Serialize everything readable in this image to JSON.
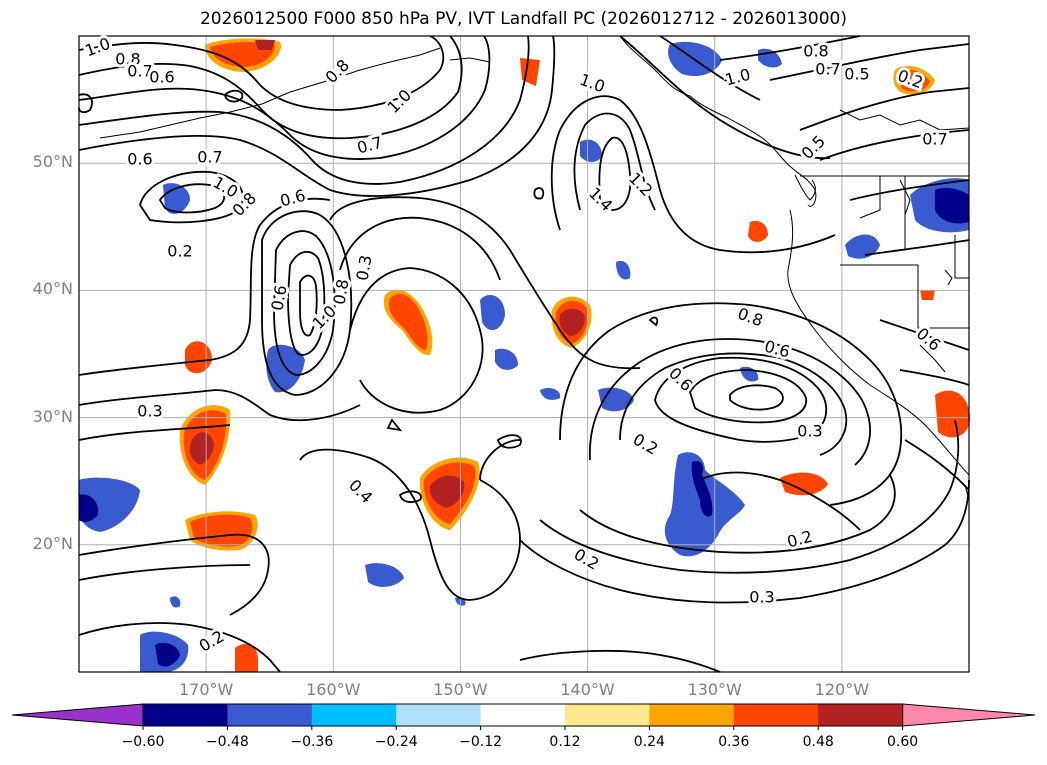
{
  "title": "2026012500 F000 850 hPa PV, IVT Landfall PC (2026012712 - 2026013000)",
  "map": {
    "lon_range": [
      -180,
      -110
    ],
    "lat_range": [
      10,
      60
    ],
    "gridlines": true,
    "latitude_labels": [
      "50°N",
      "40°N",
      "30°N",
      "20°N"
    ],
    "longitude_labels": [
      "170°W",
      "160°W",
      "150°W",
      "140°W",
      "130°W",
      "120°W"
    ],
    "latitude_values": [
      50,
      40,
      30,
      20
    ],
    "longitude_values": [
      -170,
      -160,
      -150,
      -140,
      -130,
      -120
    ]
  },
  "contour_labels": [
    "1.0",
    "0.8",
    "0.7",
    "0.6",
    "0.8",
    "1.0",
    "0.7",
    "0.6",
    "0.7",
    "1.0",
    "0.8",
    "0.6",
    "0.2",
    "0.3",
    "0.8",
    "1.0",
    "0.6",
    "0.3",
    "0.4",
    "1.0",
    "1.4",
    "1.2",
    "1.0",
    "0.8",
    "0.7",
    "0.5",
    "0.2",
    "0.5",
    "0.7",
    "0.6",
    "0.8",
    "0.6",
    "0.6",
    "0.3",
    "0.2",
    "0.2",
    "0.2",
    "0.3",
    "0.2"
  ],
  "colorbar": {
    "ticks": [
      "−0.60",
      "−0.48",
      "−0.36",
      "−0.24",
      "−0.12",
      "0.12",
      "0.24",
      "0.36",
      "0.48",
      "0.60"
    ],
    "colors": {
      "under": "#9932cc",
      "bins": [
        "#00008b",
        "#3a5bd0",
        "#00bfff",
        "#b0e0f8",
        "#ffffff",
        "#fde88e",
        "#ffa500",
        "#ff4500",
        "#b22222"
      ],
      "over": "#ff88aa"
    }
  },
  "colors": {
    "positive_strong": "#b22222",
    "positive": "#ff4500",
    "positive_edge": "#ffa500",
    "negative_strong": "#00008b",
    "negative": "#3a5bd0",
    "negative_edge": "#00bfff",
    "grid": "#b0b0b0",
    "contour": "#000000"
  }
}
